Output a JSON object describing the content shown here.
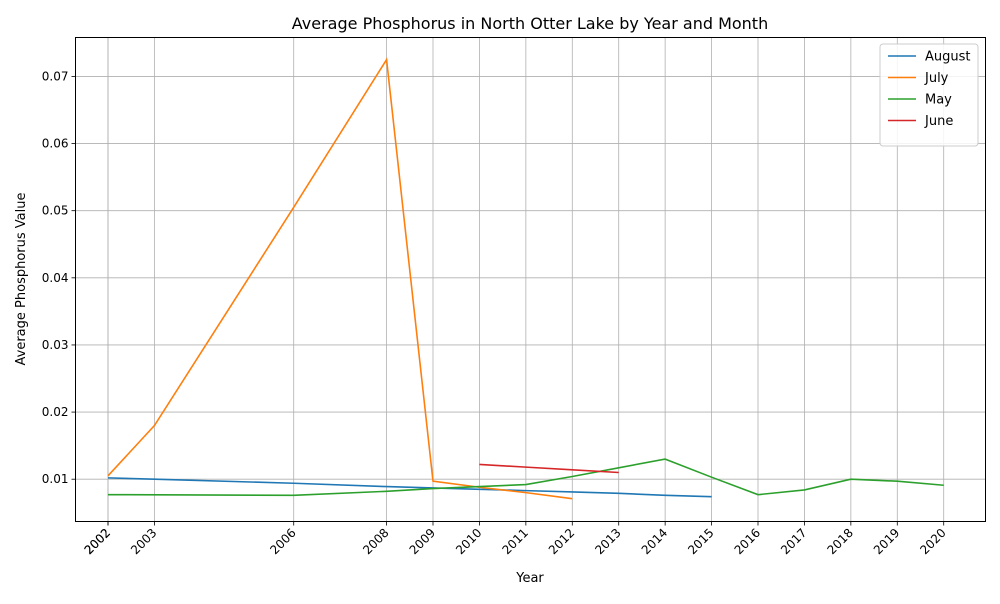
{
  "chart_data": {
    "type": "line",
    "title": "Average Phosphorus in North Otter Lake by Year and Month",
    "xlabel": "Year",
    "ylabel": "Average Phosphorus Value",
    "x_ticks": [
      "2002",
      "2002",
      "2003",
      "2006",
      "2008",
      "2009",
      "2010",
      "2011",
      "2012",
      "2013",
      "2014",
      "2015",
      "2016",
      "2017",
      "2018",
      "2019",
      "2020"
    ],
    "x_tick_values": [
      2002,
      2002,
      2003,
      2006,
      2008,
      2009,
      2010,
      2011,
      2012,
      2013,
      2014,
      2015,
      2016,
      2017,
      2018,
      2019,
      2020
    ],
    "y_ticks": [
      "0.01",
      "0.02",
      "0.03",
      "0.04",
      "0.05",
      "0.06",
      "0.07"
    ],
    "y_tick_values": [
      0.01,
      0.02,
      0.03,
      0.04,
      0.05,
      0.06,
      0.07
    ],
    "xlim": [
      2001.3,
      2020.9
    ],
    "ylim": [
      0.0037,
      0.0758
    ],
    "grid": true,
    "legend_position": "top-right",
    "series": [
      {
        "name": "August",
        "color": "#1f77b4",
        "x": [
          2002,
          2003,
          2006,
          2008,
          2009,
          2010,
          2011,
          2012,
          2013,
          2014,
          2015
        ],
        "y": [
          0.0102,
          0.01,
          0.0094,
          0.0089,
          0.0087,
          0.0085,
          0.0083,
          0.0081,
          0.0079,
          0.0076,
          0.0074
        ]
      },
      {
        "name": "July",
        "color": "#ff7f0e",
        "x": [
          2002,
          2003,
          2006,
          2008,
          2009,
          2010,
          2011,
          2012
        ],
        "y": [
          0.0105,
          0.018,
          0.0505,
          0.0725,
          0.0097,
          0.0088,
          0.008,
          0.0071
        ]
      },
      {
        "name": "May",
        "color": "#2ca02c",
        "x": [
          2002,
          2006,
          2008,
          2009,
          2010,
          2011,
          2012,
          2013,
          2014,
          2015,
          2016,
          2017,
          2018,
          2019,
          2020
        ],
        "y": [
          0.0077,
          0.0076,
          0.0082,
          0.0086,
          0.0089,
          0.0092,
          0.0104,
          0.0117,
          0.013,
          0.0103,
          0.0077,
          0.0084,
          0.01,
          0.0097,
          0.0091
        ]
      },
      {
        "name": "June",
        "color": "#d62728",
        "x": [
          2010,
          2011,
          2012,
          2013
        ],
        "y": [
          0.0122,
          0.0118,
          0.0114,
          0.011
        ]
      }
    ]
  }
}
